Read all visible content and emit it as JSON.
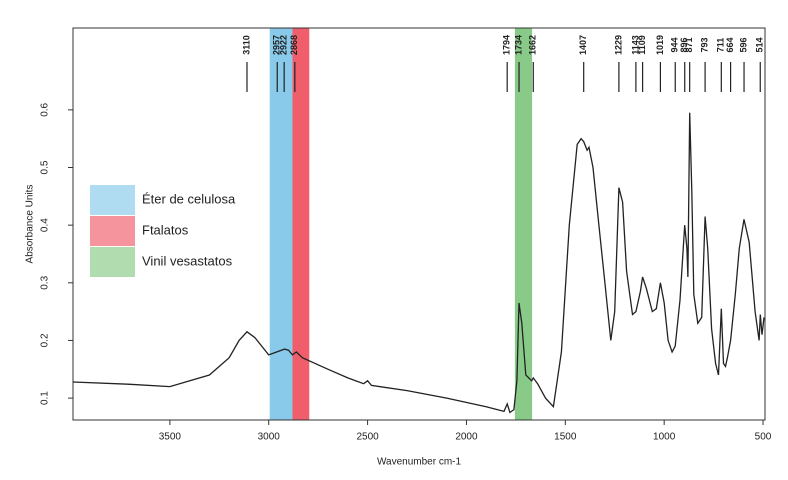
{
  "chart_data": {
    "type": "line",
    "x_label": "Wavenumber cm-1",
    "y_label": "Absorbance Units",
    "xlim": [
      3990,
      490
    ],
    "ylim": [
      0.062,
      0.742
    ],
    "xticks": [
      3500,
      3000,
      2500,
      2000,
      1500,
      1000,
      500
    ],
    "yticks": [
      0.1,
      0.2,
      0.3,
      0.4,
      0.5,
      0.6
    ],
    "color": "#222222",
    "x": [
      3990,
      3700,
      3500,
      3300,
      3200,
      3150,
      3110,
      3070,
      3000,
      2960,
      2920,
      2900,
      2880,
      2860,
      2830,
      2700,
      2600,
      2520,
      2500,
      2480,
      2300,
      2100,
      1900,
      1810,
      1794,
      1780,
      1760,
      1745,
      1734,
      1720,
      1700,
      1670,
      1662,
      1640,
      1600,
      1560,
      1520,
      1480,
      1440,
      1420,
      1407,
      1390,
      1380,
      1360,
      1330,
      1300,
      1270,
      1250,
      1229,
      1210,
      1190,
      1160,
      1143,
      1120,
      1109,
      1090,
      1060,
      1040,
      1019,
      1000,
      980,
      960,
      944,
      920,
      896,
      885,
      880,
      871,
      860,
      850,
      830,
      810,
      793,
      780,
      760,
      740,
      725,
      711,
      700,
      690,
      680,
      664,
      640,
      620,
      596,
      570,
      540,
      520,
      514,
      505,
      495
    ],
    "values": [
      0.128,
      0.124,
      0.12,
      0.14,
      0.17,
      0.2,
      0.215,
      0.205,
      0.175,
      0.18,
      0.185,
      0.183,
      0.175,
      0.18,
      0.17,
      0.15,
      0.135,
      0.125,
      0.13,
      0.122,
      0.113,
      0.1,
      0.085,
      0.077,
      0.09,
      0.075,
      0.08,
      0.13,
      0.265,
      0.23,
      0.14,
      0.13,
      0.135,
      0.125,
      0.1,
      0.085,
      0.18,
      0.4,
      0.54,
      0.55,
      0.545,
      0.53,
      0.535,
      0.5,
      0.4,
      0.3,
      0.2,
      0.25,
      0.465,
      0.44,
      0.32,
      0.245,
      0.25,
      0.285,
      0.31,
      0.29,
      0.25,
      0.255,
      0.3,
      0.265,
      0.2,
      0.18,
      0.19,
      0.27,
      0.4,
      0.36,
      0.31,
      0.595,
      0.46,
      0.28,
      0.23,
      0.24,
      0.415,
      0.36,
      0.22,
      0.16,
      0.14,
      0.255,
      0.16,
      0.155,
      0.17,
      0.2,
      0.28,
      0.36,
      0.41,
      0.37,
      0.25,
      0.2,
      0.245,
      0.21,
      0.24
    ],
    "peaks": [
      3110,
      2957,
      2922,
      2868,
      1794,
      1734,
      1662,
      1407,
      1229,
      1143,
      1109,
      1019,
      944,
      896,
      871,
      793,
      711,
      664,
      596,
      514
    ],
    "bands": [
      {
        "name": "Éter de celulosa",
        "color": "#7cc4e8",
        "range": [
          2995,
          2880
        ]
      },
      {
        "name": "Ftalatos",
        "color": "#ee4c5c",
        "range": [
          2880,
          2795
        ]
      },
      {
        "name": "Vinil vesastatos",
        "color": "#7cc47c",
        "range": [
          1755,
          1668
        ]
      }
    ]
  }
}
